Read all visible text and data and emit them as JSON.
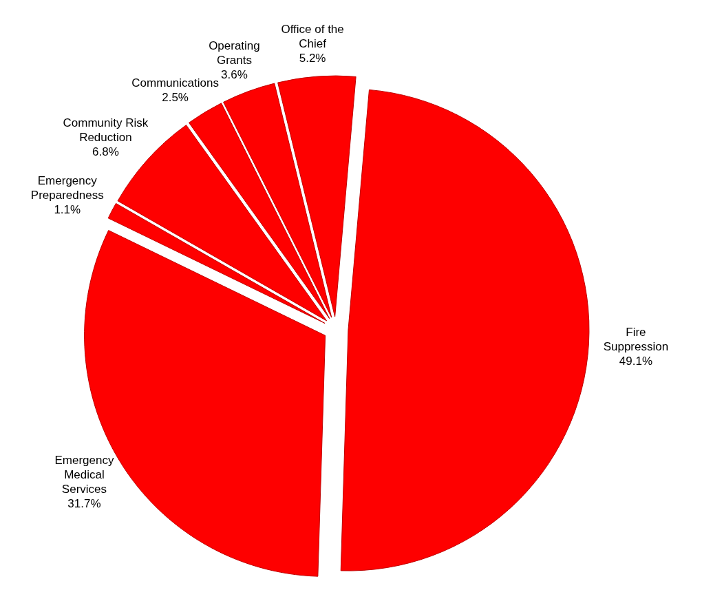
{
  "chart_data": {
    "type": "pie",
    "categories": [
      "Fire Suppression",
      "Emergency Medical Services",
      "Emergency Preparedness",
      "Community Risk Reduction",
      "Communications",
      "Operating Grants",
      "Office of the Chief"
    ],
    "values": [
      49.1,
      31.7,
      1.1,
      6.8,
      2.5,
      3.6,
      5.2
    ],
    "value_labels": [
      "49.1%",
      "31.7%",
      "1.1%",
      "6.8%",
      "2.5%",
      "3.6%",
      "5.2%"
    ],
    "colors": [
      "#fe0000",
      "#fe0000",
      "#fe0000",
      "#fe0000",
      "#fe0000",
      "#fe0000",
      "#fe0000"
    ]
  }
}
